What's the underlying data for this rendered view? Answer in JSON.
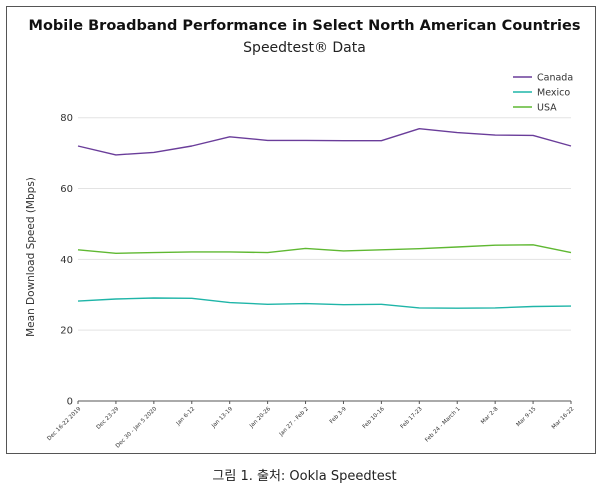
{
  "chart_data": {
    "type": "line",
    "title": "Mobile Broadband Performance in Select North American Countries",
    "subtitle": "Speedtest® Data",
    "ylabel": "Mean Download Speed (Mbps)",
    "xlabel": "",
    "ylim": [
      0,
      85
    ],
    "yticks": [
      0,
      20,
      40,
      60,
      80
    ],
    "grid": true,
    "legend_position": "top-right",
    "categories": [
      "Dec 16-22 2019",
      "Dec 23-29",
      "Dec 30 - Jan 5 2020",
      "Jan 6-12",
      "Jan 13-19",
      "Jan 20-26",
      "Jan 27 - Feb 2",
      "Feb 3-9",
      "Feb 10-16",
      "Feb 17-23",
      "Feb 24 - March 1",
      "Mar 2-8",
      "Mar 9-15",
      "Mar 16-22"
    ],
    "series": [
      {
        "name": "Canada",
        "color": "#6a3d9a",
        "values": [
          72.0,
          69.5,
          70.2,
          72.0,
          74.6,
          73.6,
          73.6,
          73.5,
          73.5,
          76.9,
          75.8,
          75.1,
          75.0,
          72.0
        ]
      },
      {
        "name": "Mexico",
        "color": "#1fb5a8",
        "values": [
          28.2,
          28.8,
          29.1,
          29.0,
          27.8,
          27.3,
          27.5,
          27.2,
          27.3,
          26.3,
          26.2,
          26.3,
          26.7,
          26.8
        ]
      },
      {
        "name": "USA",
        "color": "#5fb832",
        "values": [
          42.7,
          41.7,
          41.9,
          42.1,
          42.1,
          41.9,
          43.1,
          42.4,
          42.7,
          43.0,
          43.5,
          44.0,
          44.1,
          41.9
        ]
      }
    ]
  },
  "caption": "그림 1. 출처: Ookla Speedtest"
}
